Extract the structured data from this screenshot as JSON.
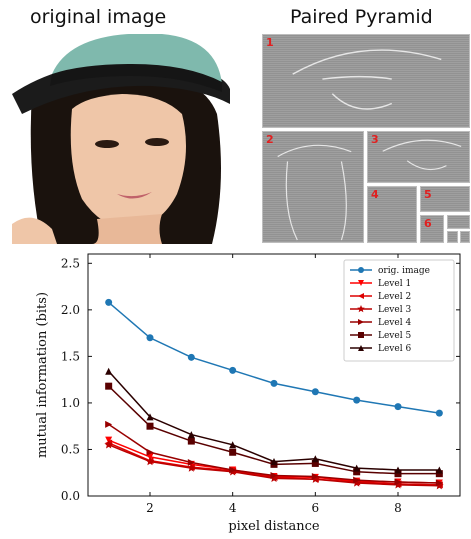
{
  "titles": {
    "original": "original image",
    "pyramid": "Paired Pyramid"
  },
  "pyramid_tiles": [
    "1",
    "2",
    "3",
    "4",
    "5",
    "6"
  ],
  "chart_data": {
    "type": "line",
    "xlabel": "pixel distance",
    "ylabel": "mutual information (bits)",
    "xlim": [
      0.5,
      9.5
    ],
    "ylim": [
      0.0,
      2.6
    ],
    "xticks": [
      2,
      4,
      6,
      8
    ],
    "yticks": [
      0.0,
      0.5,
      1.0,
      1.5,
      2.0,
      2.5
    ],
    "ytick_labels": [
      "0.0",
      "0.5",
      "1.0",
      "1.5",
      "2.0",
      "2.5"
    ],
    "legend_position": "top-right",
    "x": [
      1,
      2,
      3,
      4,
      5,
      6,
      7,
      8,
      9
    ],
    "series": [
      {
        "name": "orig. image",
        "color": "#1f77b4",
        "marker": "circle",
        "values": [
          2.08,
          1.7,
          1.49,
          1.35,
          1.21,
          1.12,
          1.03,
          0.96,
          0.89
        ]
      },
      {
        "name": "Level 1",
        "color": "#ff0000",
        "marker": "triangle-down",
        "values": [
          0.6,
          0.42,
          0.34,
          0.28,
          0.21,
          0.2,
          0.16,
          0.15,
          0.14
        ]
      },
      {
        "name": "Level 2",
        "color": "#dd0000",
        "marker": "triangle-left",
        "values": [
          0.57,
          0.38,
          0.31,
          0.27,
          0.2,
          0.18,
          0.15,
          0.13,
          0.12
        ]
      },
      {
        "name": "Level 3",
        "color": "#bb0000",
        "marker": "star",
        "values": [
          0.55,
          0.37,
          0.3,
          0.26,
          0.19,
          0.18,
          0.14,
          0.12,
          0.11
        ]
      },
      {
        "name": "Level 4",
        "color": "#990000",
        "marker": "triangle-right",
        "values": [
          0.77,
          0.47,
          0.36,
          0.28,
          0.22,
          0.21,
          0.17,
          0.15,
          0.14
        ]
      },
      {
        "name": "Level 5",
        "color": "#5a0000",
        "marker": "square",
        "values": [
          1.18,
          0.75,
          0.59,
          0.47,
          0.34,
          0.35,
          0.26,
          0.24,
          0.24
        ]
      },
      {
        "name": "Level 6",
        "color": "#2a0000",
        "marker": "triangle-up",
        "values": [
          1.34,
          0.85,
          0.66,
          0.55,
          0.37,
          0.4,
          0.3,
          0.28,
          0.28
        ]
      }
    ]
  }
}
